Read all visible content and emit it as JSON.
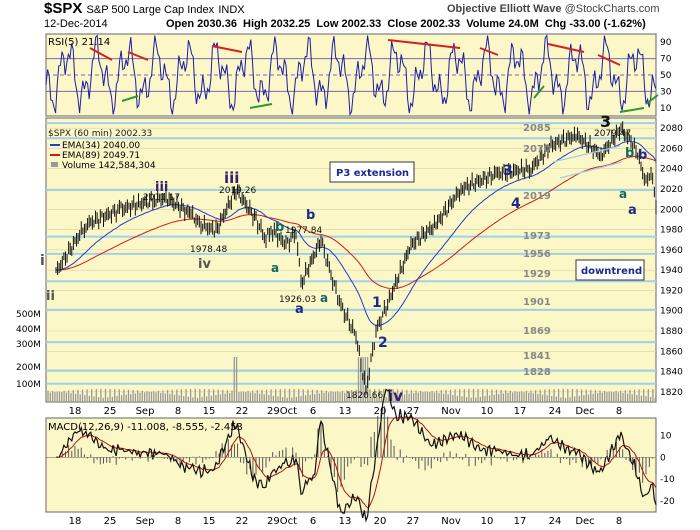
{
  "header": {
    "symbol": "$SPX",
    "name": "S&P 500 Large Cap Index",
    "exchange": "INDX",
    "brand": "Objective Elliott Wave",
    "copyright": "@StockCharts.com",
    "date": "12-Dec-2014",
    "ohlc": "Open 2030.36  High 2032.25  Low 2002.33  Close 2002.33  Volume 24.0M  Chg -33.00 (-1.62%)"
  },
  "colors": {
    "panel_bg": "#fbf7c6",
    "h_lines": "#9fd2ea",
    "rsi_line": "#1c1ca8",
    "ema34": "#1f3fd0",
    "ema89": "#d41919",
    "macd_line": "#111111",
    "signal_line": "#bb1111",
    "histogram": "#555555",
    "wave_purple": "#3a1d6d",
    "wave_teal": "#0f6a66",
    "wave_navy": "#1c2a8e"
  },
  "chart_data": [
    {
      "type": "line",
      "title": "RSI(5) 21.14",
      "ylim": [
        0,
        100
      ],
      "y_ticks": [
        "90",
        "70",
        "50",
        "30",
        "10"
      ]
    },
    {
      "type": "line",
      "title": "$SPX (60 min) 2002.33",
      "legend": [
        "EMA(34) 2040.00",
        "EMA(89) 2049.71",
        "Volume 142,584,304"
      ],
      "ylim": [
        1810,
        2090
      ],
      "y_ticks": [
        "2080",
        "2060",
        "2040",
        "2020",
        "2000",
        "1980",
        "1960",
        "1940",
        "1920",
        "1900",
        "1880",
        "1860",
        "1840",
        "1820"
      ],
      "volume_ticks": [
        "500M",
        "400M",
        "300M",
        "200M",
        "100M"
      ],
      "x_ticks": [
        "18",
        "25",
        "Sep",
        "8",
        "15",
        "22",
        "29Oct",
        "6",
        "13",
        "20",
        "27",
        "Nov",
        "10",
        "17",
        "24",
        "Dec",
        "8"
      ],
      "levels": [
        "2085",
        "2070",
        "2019",
        "1973",
        "1956",
        "1929",
        "1901",
        "1869",
        "1841",
        "1828"
      ],
      "price_points": [
        {
          "date": "2014-08-14",
          "value": 1938
        },
        {
          "date": "2014-08-20",
          "value": 1985
        },
        {
          "date": "2014-08-27",
          "value": 2000
        },
        {
          "date": "2014-09-03",
          "value": 2010
        },
        {
          "date": "2014-09-05",
          "value": 2011.17
        },
        {
          "date": "2014-09-10",
          "value": 1995
        },
        {
          "date": "2014-09-12",
          "value": 1985
        },
        {
          "date": "2014-09-15",
          "value": 1978.48
        },
        {
          "date": "2014-09-19",
          "value": 2019.26
        },
        {
          "date": "2014-09-23",
          "value": 1990
        },
        {
          "date": "2014-09-25",
          "value": 1970
        },
        {
          "date": "2014-09-26",
          "value": 1980
        },
        {
          "date": "2014-09-29",
          "value": 1965
        },
        {
          "date": "2014-10-01",
          "value": 1977.84
        },
        {
          "date": "2014-10-02",
          "value": 1926.03
        },
        {
          "date": "2014-10-06",
          "value": 1970
        },
        {
          "date": "2014-10-08",
          "value": 1935
        },
        {
          "date": "2014-10-10",
          "value": 1905
        },
        {
          "date": "2014-10-13",
          "value": 1875
        },
        {
          "date": "2014-10-15",
          "value": 1820.66
        },
        {
          "date": "2014-10-17",
          "value": 1880
        },
        {
          "date": "2014-10-20",
          "value": 1915
        },
        {
          "date": "2014-10-24",
          "value": 1965
        },
        {
          "date": "2014-10-29",
          "value": 1985
        },
        {
          "date": "2014-11-03",
          "value": 2020
        },
        {
          "date": "2014-11-10",
          "value": 2035
        },
        {
          "date": "2014-11-17",
          "value": 2040
        },
        {
          "date": "2014-11-21",
          "value": 2063
        },
        {
          "date": "2014-11-26",
          "value": 2073
        },
        {
          "date": "2014-12-01",
          "value": 2053
        },
        {
          "date": "2014-12-05",
          "value": 2079.47
        },
        {
          "date": "2014-12-08",
          "value": 2060
        },
        {
          "date": "2014-12-10",
          "value": 2025
        },
        {
          "date": "2014-12-11",
          "value": 2040
        },
        {
          "date": "2014-12-12",
          "value": 2002.33
        }
      ],
      "annotations": {
        "price_labels": [
          "2011.17",
          "2019.26",
          "1978.48",
          "1977.84",
          "1926.03",
          "1820.66",
          "2079.47"
        ],
        "waves": [
          "i",
          "ii",
          "iii",
          "iv",
          "iii",
          "iv",
          "a",
          "b",
          "a",
          "b",
          "a",
          "1",
          "2",
          "3",
          "4",
          "3",
          "a",
          "b",
          "a",
          "b"
        ],
        "boxes": [
          "P3 extension",
          "downtrend"
        ]
      }
    },
    {
      "type": "line",
      "title": "MACD(12,26,9) -11.008, -8.555, -2.453",
      "ylim": [
        -25,
        18
      ],
      "y_ticks": [
        "10",
        "0",
        "-10",
        "-20"
      ]
    }
  ]
}
